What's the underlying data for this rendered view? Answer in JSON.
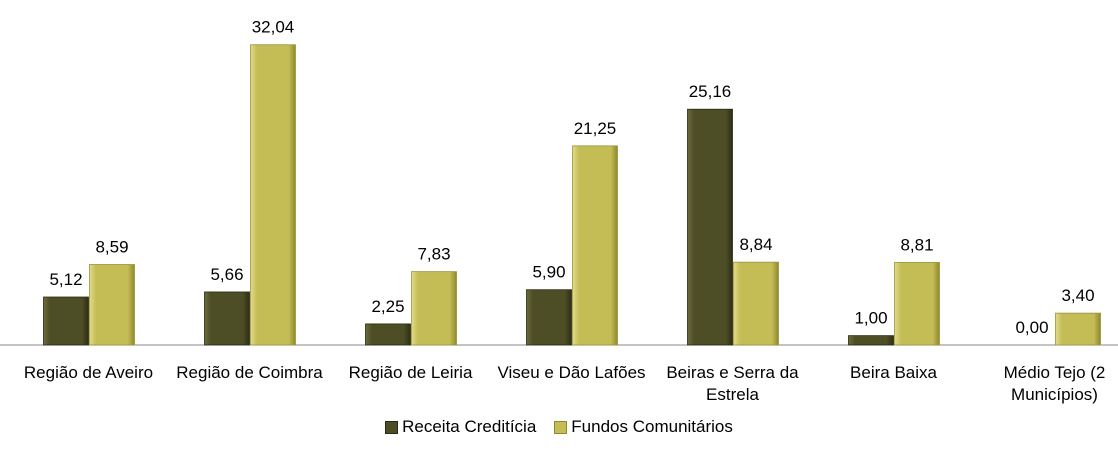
{
  "chart_data": {
    "type": "bar",
    "categories": [
      "Região de Aveiro",
      "Região de Coimbra",
      "Região de Leiria",
      "Viseu e Dão Lafões",
      "Beiras e Serra da Estrela",
      "Beira Baixa",
      "Médio Tejo (2 Municípios)"
    ],
    "series": [
      {
        "name": "Receita Creditícia",
        "color": "#4d4d26",
        "values": [
          5.12,
          5.66,
          2.25,
          5.9,
          25.16,
          1.0,
          0.0
        ],
        "value_labels": [
          "5,12",
          "5,66",
          "2,25",
          "5,90",
          "25,16",
          "1,00",
          "0,00"
        ]
      },
      {
        "name": "Fundos Comunitários",
        "color": "#c4bc55",
        "values": [
          8.59,
          32.04,
          7.83,
          21.25,
          8.84,
          8.81,
          3.4
        ],
        "value_labels": [
          "8,59",
          "32,04",
          "7,83",
          "21,25",
          "8,84",
          "8,81",
          "3,40"
        ]
      }
    ],
    "ylim": [
      0,
      35
    ],
    "legend": "bottom"
  }
}
